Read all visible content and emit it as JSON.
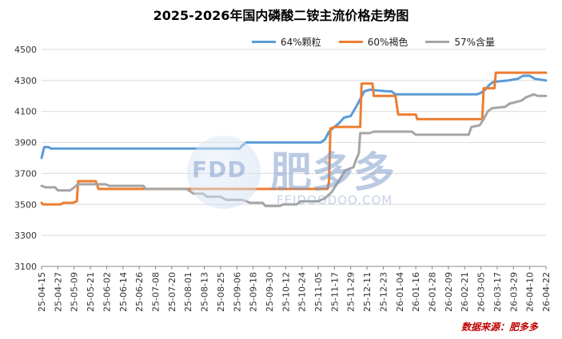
{
  "title": "2025-2026年国内磷酸二铵主流价格走势图",
  "source_text": "数据来源：肥多多",
  "watermark": {
    "logo_text": "FDD",
    "brand_cn": "肥多多",
    "url": "FEIDOODOO.COM"
  },
  "chart_data": {
    "type": "line",
    "ylim": [
      3100,
      4500
    ],
    "yticks": [
      3100,
      3300,
      3500,
      3700,
      3900,
      4100,
      4300,
      4500
    ],
    "x_tick_labels": [
      "25-04-15",
      "25-04-27",
      "25-05-09",
      "25-05-21",
      "25-06-02",
      "25-06-14",
      "25-06-26",
      "25-07-08",
      "25-07-20",
      "25-08-01",
      "25-08-13",
      "25-08-25",
      "25-09-06",
      "25-09-18",
      "25-09-30",
      "25-10-12",
      "25-10-24",
      "25-11-05",
      "25-11-17",
      "25-11-29",
      "25-12-11",
      "25-12-23",
      "26-01-04",
      "26-01-16",
      "26-01-28",
      "26-02-09",
      "26-02-21",
      "26-03-05",
      "26-03-17",
      "26-03-29",
      "26-04-10",
      "26-04-22"
    ],
    "x_range": [
      "25-04-15",
      "26-04-22"
    ],
    "grid": {
      "horizontal": true,
      "vertical": false
    },
    "legend_position": "top-center",
    "series": [
      {
        "name": "64%颗粒",
        "color": "#5b9bd5",
        "points": [
          [
            "25-04-15",
            3800
          ],
          [
            "25-04-17",
            3870
          ],
          [
            "25-04-20",
            3870
          ],
          [
            "25-04-22",
            3860
          ],
          [
            "25-09-08",
            3860
          ],
          [
            "25-09-10",
            3880
          ],
          [
            "25-09-13",
            3900
          ],
          [
            "25-11-07",
            3900
          ],
          [
            "25-11-10",
            3920
          ],
          [
            "25-11-13",
            3970
          ],
          [
            "25-11-17",
            4000
          ],
          [
            "25-11-21",
            4030
          ],
          [
            "25-11-24",
            4060
          ],
          [
            "25-11-29",
            4070
          ],
          [
            "25-12-03",
            4130
          ],
          [
            "25-12-06",
            4180
          ],
          [
            "25-12-09",
            4230
          ],
          [
            "25-12-13",
            4240
          ],
          [
            "25-12-26",
            4230
          ],
          [
            "25-12-29",
            4230
          ],
          [
            "26-01-01",
            4210
          ],
          [
            "26-03-02",
            4210
          ],
          [
            "26-03-05",
            4220
          ],
          [
            "26-03-08",
            4240
          ],
          [
            "26-03-11",
            4270
          ],
          [
            "26-03-14",
            4290
          ],
          [
            "26-03-25",
            4300
          ],
          [
            "26-04-01",
            4310
          ],
          [
            "26-04-05",
            4330
          ],
          [
            "26-04-10",
            4330
          ],
          [
            "26-04-14",
            4310
          ],
          [
            "26-04-22",
            4300
          ]
        ]
      },
      {
        "name": "60%褐色",
        "color": "#ed7d31",
        "points": [
          [
            "25-04-15",
            3510
          ],
          [
            "25-04-16",
            3500
          ],
          [
            "25-04-29",
            3500
          ],
          [
            "25-05-01",
            3510
          ],
          [
            "25-05-08",
            3510
          ],
          [
            "25-05-11",
            3520
          ],
          [
            "25-05-12",
            3650
          ],
          [
            "25-05-25",
            3650
          ],
          [
            "25-05-27",
            3600
          ],
          [
            "25-06-30",
            3600
          ],
          [
            "25-07-01",
            3600
          ],
          [
            "25-11-12",
            3600
          ],
          [
            "25-11-13",
            3650
          ],
          [
            "25-11-14",
            3990
          ],
          [
            "25-11-17",
            4000
          ],
          [
            "25-12-06",
            4000
          ],
          [
            "25-12-07",
            4280
          ],
          [
            "25-12-15",
            4280
          ],
          [
            "25-12-16",
            4200
          ],
          [
            "26-01-01",
            4200
          ],
          [
            "26-01-03",
            4080
          ],
          [
            "26-01-16",
            4080
          ],
          [
            "26-01-17",
            4050
          ],
          [
            "26-03-06",
            4050
          ],
          [
            "26-03-07",
            4250
          ],
          [
            "26-03-15",
            4250
          ],
          [
            "26-03-16",
            4350
          ],
          [
            "26-04-22",
            4350
          ]
        ]
      },
      {
        "name": "57%含量",
        "color": "#a5a5a5",
        "points": [
          [
            "25-04-15",
            3620
          ],
          [
            "25-04-18",
            3610
          ],
          [
            "25-04-25",
            3610
          ],
          [
            "25-04-27",
            3590
          ],
          [
            "25-05-06",
            3590
          ],
          [
            "25-05-09",
            3610
          ],
          [
            "25-05-12",
            3630
          ],
          [
            "25-06-01",
            3630
          ],
          [
            "25-06-04",
            3620
          ],
          [
            "25-06-29",
            3620
          ],
          [
            "25-07-01",
            3600
          ],
          [
            "25-07-31",
            3600
          ],
          [
            "25-08-05",
            3570
          ],
          [
            "25-08-12",
            3570
          ],
          [
            "25-08-15",
            3550
          ],
          [
            "25-08-25",
            3550
          ],
          [
            "25-08-29",
            3530
          ],
          [
            "25-09-10",
            3530
          ],
          [
            "25-09-16",
            3510
          ],
          [
            "25-09-25",
            3510
          ],
          [
            "25-09-27",
            3490
          ],
          [
            "25-10-08",
            3490
          ],
          [
            "25-10-10",
            3500
          ],
          [
            "25-10-20",
            3500
          ],
          [
            "25-10-23",
            3520
          ],
          [
            "25-11-05",
            3520
          ],
          [
            "25-11-10",
            3540
          ],
          [
            "25-11-15",
            3580
          ],
          [
            "25-11-20",
            3650
          ],
          [
            "25-11-25",
            3720
          ],
          [
            "25-12-01",
            3740
          ],
          [
            "25-12-03",
            3790
          ],
          [
            "25-12-05",
            3830
          ],
          [
            "25-12-06",
            3960
          ],
          [
            "25-12-13",
            3960
          ],
          [
            "25-12-16",
            3970
          ],
          [
            "26-01-13",
            3970
          ],
          [
            "26-01-16",
            3950
          ],
          [
            "26-02-24",
            3950
          ],
          [
            "26-02-26",
            4000
          ],
          [
            "26-03-04",
            4010
          ],
          [
            "26-03-07",
            4050
          ],
          [
            "26-03-10",
            4100
          ],
          [
            "26-03-13",
            4120
          ],
          [
            "26-03-23",
            4130
          ],
          [
            "26-03-26",
            4150
          ],
          [
            "26-04-04",
            4170
          ],
          [
            "26-04-07",
            4190
          ],
          [
            "26-04-13",
            4210
          ],
          [
            "26-04-16",
            4200
          ],
          [
            "26-04-22",
            4200
          ]
        ]
      }
    ]
  }
}
